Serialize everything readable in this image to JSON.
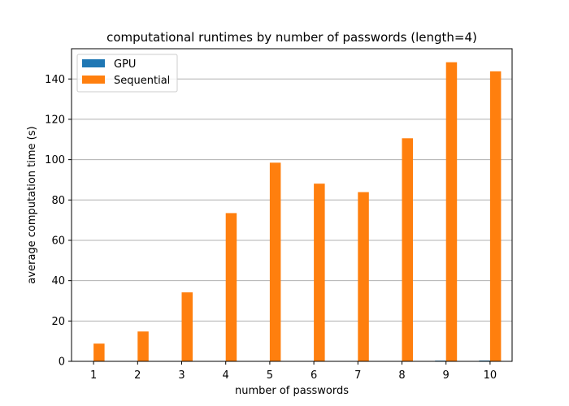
{
  "chart_data": {
    "type": "bar",
    "title": "computational runtimes by number of passwords (length=4)",
    "xlabel": "number of passwords",
    "ylabel": "average computation time (s)",
    "categories": [
      "1",
      "2",
      "3",
      "4",
      "5",
      "6",
      "7",
      "8",
      "9",
      "10"
    ],
    "series": [
      {
        "name": "GPU",
        "color": "#1f77b4",
        "values": [
          0.05,
          0.06,
          0.08,
          0.1,
          0.12,
          0.14,
          0.16,
          0.2,
          0.35,
          0.4
        ]
      },
      {
        "name": "Sequential",
        "color": "#ff7f0e",
        "values": [
          8.8,
          14.8,
          34.2,
          73.5,
          98.5,
          88.1,
          83.9,
          110.6,
          148.3,
          143.8
        ]
      }
    ],
    "ylim": [
      0,
      155
    ],
    "yticks": [
      0,
      20,
      40,
      60,
      80,
      100,
      120,
      140
    ],
    "grid": "y",
    "legend": {
      "placement": "top-left"
    }
  }
}
